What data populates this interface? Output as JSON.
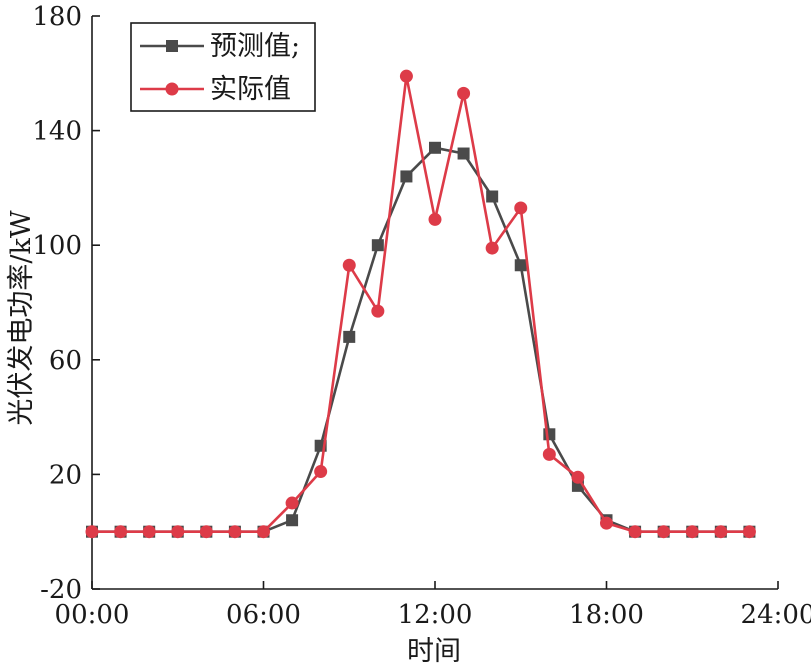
{
  "chart_data": {
    "type": "line",
    "xlabel": "时间",
    "ylabel": "光伏发电功率/kW",
    "xlim": [
      0,
      24
    ],
    "ylim": [
      -20,
      180
    ],
    "x_ticks": [
      0,
      6,
      12,
      18,
      24
    ],
    "x_tick_labels": [
      "00:00",
      "06:00",
      "12:00",
      "18:00",
      "24:00"
    ],
    "y_ticks": [
      -20,
      20,
      60,
      100,
      140,
      180
    ],
    "y_tick_labels": [
      "-20",
      "20",
      "60",
      "100",
      "140",
      "180"
    ],
    "grid": false,
    "legend_position": "top-left",
    "x": [
      0,
      1,
      2,
      3,
      4,
      5,
      6,
      7,
      8,
      9,
      10,
      11,
      12,
      13,
      14,
      15,
      16,
      17,
      18,
      19,
      20,
      21,
      22,
      23
    ],
    "series": [
      {
        "name": "预测值;",
        "color": "#4a4a4a",
        "marker": "square",
        "values": [
          0,
          0,
          0,
          0,
          0,
          0,
          0,
          4,
          30,
          68,
          100,
          124,
          134,
          132,
          117,
          93,
          34,
          16,
          4,
          0,
          0,
          0,
          0,
          0
        ]
      },
      {
        "name": "实际值",
        "color": "#dd3b48",
        "marker": "circle",
        "values": [
          0,
          0,
          0,
          0,
          0,
          0,
          0,
          10,
          21,
          93,
          77,
          159,
          109,
          153,
          99,
          113,
          27,
          19,
          3,
          0,
          0,
          0,
          0,
          0
        ]
      }
    ]
  }
}
